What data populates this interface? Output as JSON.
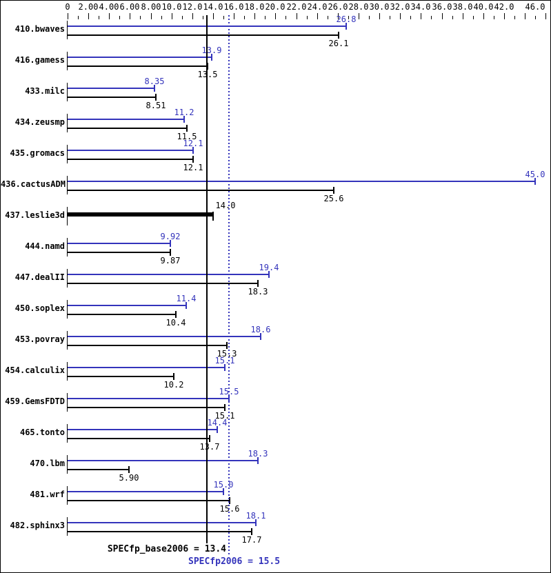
{
  "chart_data": {
    "type": "bar",
    "orientation": "horizontal",
    "xlim": [
      0,
      46
    ],
    "grid": false,
    "legend": "none",
    "colors": {
      "peak": "#3333bb",
      "base": "#000000",
      "background": "#ffffff"
    },
    "axis": {
      "position": "top",
      "major_ticks": [
        {
          "value": 0,
          "label": "0"
        },
        {
          "value": 2,
          "label": "2.00"
        },
        {
          "value": 4,
          "label": "4.00"
        },
        {
          "value": 6,
          "label": "6.00"
        },
        {
          "value": 8,
          "label": "8.00"
        },
        {
          "value": 10,
          "label": "10.0"
        },
        {
          "value": 12,
          "label": "12.0"
        },
        {
          "value": 14,
          "label": "14.0"
        },
        {
          "value": 16,
          "label": "16.0"
        },
        {
          "value": 18,
          "label": "18.0"
        },
        {
          "value": 20,
          "label": "20.0"
        },
        {
          "value": 22,
          "label": "22.0"
        },
        {
          "value": 24,
          "label": "24.0"
        },
        {
          "value": 26,
          "label": "26.0"
        },
        {
          "value": 28,
          "label": "28.0"
        },
        {
          "value": 30,
          "label": "30.0"
        },
        {
          "value": 32,
          "label": "32.0"
        },
        {
          "value": 34,
          "label": "34.0"
        },
        {
          "value": 36,
          "label": "36.0"
        },
        {
          "value": 38,
          "label": "38.0"
        },
        {
          "value": 40,
          "label": "40.0"
        },
        {
          "value": 42,
          "label": "42.0"
        },
        {
          "value": 44,
          "label": ""
        },
        {
          "value": 46,
          "label": "46.0"
        }
      ],
      "minor_tick_step": 2,
      "minor_tick_start": 1
    },
    "series": [
      {
        "name": "peak",
        "color": "#3333bb"
      },
      {
        "name": "base",
        "color": "#000000"
      }
    ],
    "benchmarks": [
      {
        "name": "410.bwaves",
        "peak": 26.8,
        "peak_label": "26.8",
        "base": 26.1,
        "base_label": "26.1"
      },
      {
        "name": "416.gamess",
        "peak": 13.9,
        "peak_label": "13.9",
        "base": 13.5,
        "base_label": "13.5"
      },
      {
        "name": "433.milc",
        "peak": 8.35,
        "peak_label": "8.35",
        "base": 8.51,
        "base_label": "8.51"
      },
      {
        "name": "434.zeusmp",
        "peak": 11.2,
        "peak_label": "11.2",
        "base": 11.5,
        "base_label": "11.5"
      },
      {
        "name": "435.gromacs",
        "peak": 12.1,
        "peak_label": "12.1",
        "base": 12.1,
        "base_label": "12.1"
      },
      {
        "name": "436.cactusADM",
        "peak": 45.0,
        "peak_label": "45.0",
        "base": 25.6,
        "base_label": "25.6"
      },
      {
        "name": "437.leslie3d",
        "peak": 14.0,
        "peak_label": "14.0",
        "base": 14.0,
        "base_label": "14.0",
        "single_bar": true,
        "single_label": "14.0"
      },
      {
        "name": "444.namd",
        "peak": 9.92,
        "peak_label": "9.92",
        "base": 9.87,
        "base_label": "9.87"
      },
      {
        "name": "447.dealII",
        "peak": 19.4,
        "peak_label": "19.4",
        "base": 18.3,
        "base_label": "18.3"
      },
      {
        "name": "450.soplex",
        "peak": 11.4,
        "peak_label": "11.4",
        "base": 10.4,
        "base_label": "10.4"
      },
      {
        "name": "453.povray",
        "peak": 18.6,
        "peak_label": "18.6",
        "base": 15.3,
        "base_label": "15.3"
      },
      {
        "name": "454.calculix",
        "peak": 15.1,
        "peak_label": "15.1",
        "base": 10.2,
        "base_label": "10.2"
      },
      {
        "name": "459.GemsFDTD",
        "peak": 15.5,
        "peak_label": "15.5",
        "base": 15.1,
        "base_label": "15.1"
      },
      {
        "name": "465.tonto",
        "peak": 14.4,
        "peak_label": "14.4",
        "base": 13.7,
        "base_label": "13.7"
      },
      {
        "name": "470.lbm",
        "peak": 18.3,
        "peak_label": "18.3",
        "base": 5.9,
        "base_label": "5.90"
      },
      {
        "name": "481.wrf",
        "peak": 15.0,
        "peak_label": "15.0",
        "base": 15.6,
        "base_label": "15.6"
      },
      {
        "name": "482.sphinx3",
        "peak": 18.1,
        "peak_label": "18.1",
        "base": 17.7,
        "base_label": "17.7"
      }
    ],
    "reference_lines": [
      {
        "name": "base_mean",
        "value": 13.4,
        "style": "solid",
        "color": "#000000"
      },
      {
        "name": "peak_mean",
        "value": 15.5,
        "style": "dotted",
        "color": "#3333bb"
      }
    ],
    "summary": {
      "base_text": "SPECfp_base2006 = 13.4",
      "base_value": 13.4,
      "peak_text": "SPECfp2006 = 15.5",
      "peak_value": 15.5
    }
  }
}
